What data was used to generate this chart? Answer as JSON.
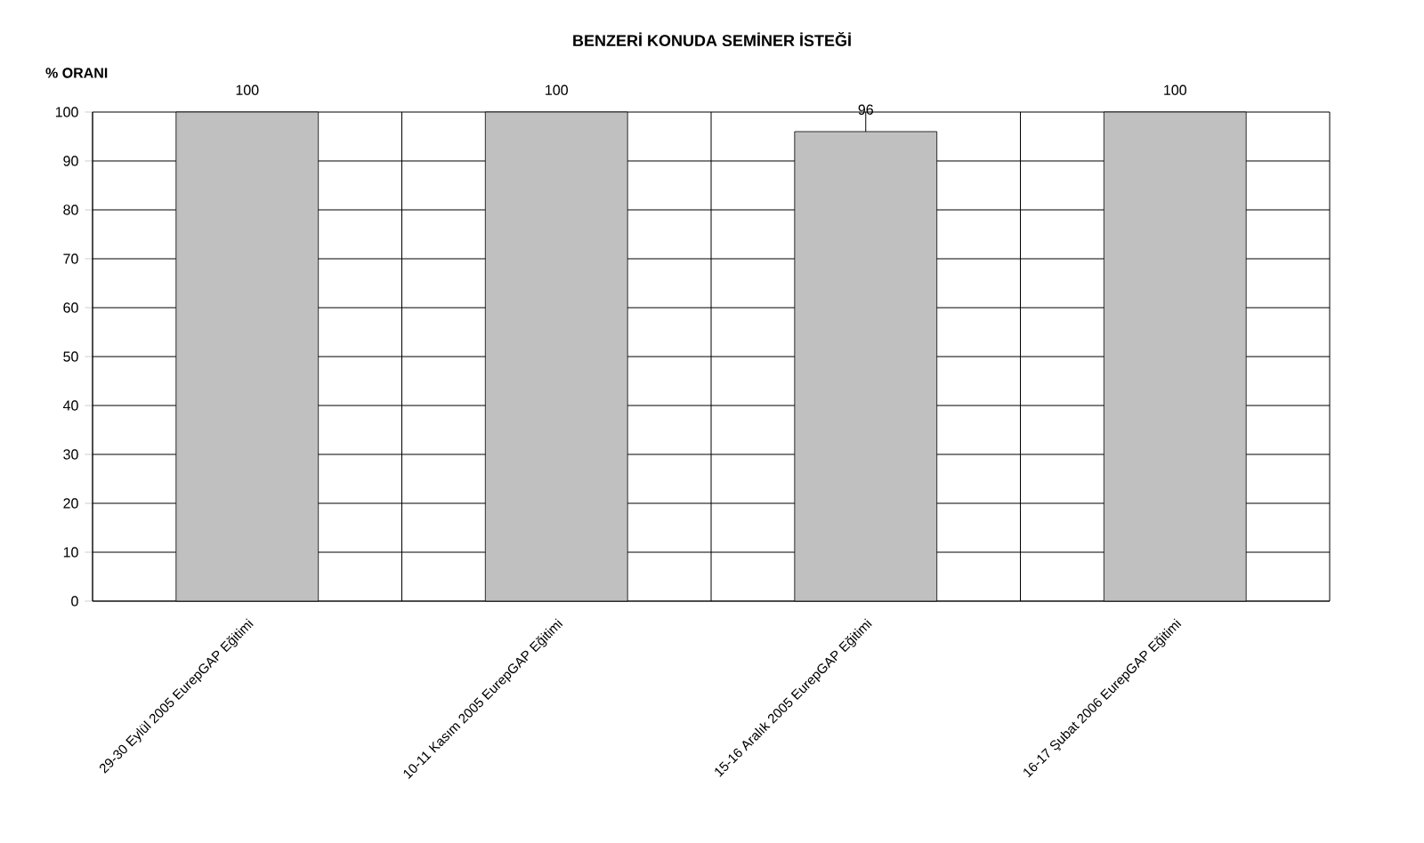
{
  "chart_data": {
    "type": "bar",
    "title": "BENZERİ KONUDA SEMİNER İSTEĞİ",
    "ylabel": "% ORANI",
    "categories": [
      "29-30 Eylül 2005  EurepGAP Eğitimi",
      "10-11 Kasım 2005 EurepGAP Eğitimi",
      "15-16 Aralık 2005 EurepGAP Eğitimi",
      "16-17 Şubat 2006  EurepGAP Eğitimi"
    ],
    "values": [
      100,
      100,
      96,
      100
    ],
    "color": "#c0c0c0",
    "ylim": [
      0,
      100
    ],
    "yticks": [
      0,
      10,
      20,
      30,
      40,
      50,
      60,
      70,
      80,
      90,
      100
    ],
    "grid": true,
    "data_labels": true
  }
}
